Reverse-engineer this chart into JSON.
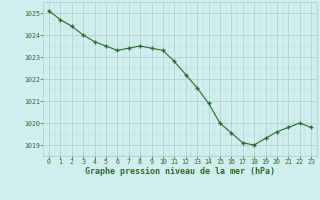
{
  "x": [
    0,
    1,
    2,
    3,
    4,
    5,
    6,
    7,
    8,
    9,
    10,
    11,
    12,
    13,
    14,
    15,
    16,
    17,
    18,
    19,
    20,
    21,
    22,
    23
  ],
  "y": [
    1025.1,
    1024.7,
    1024.4,
    1024.0,
    1023.7,
    1023.5,
    1023.3,
    1023.4,
    1023.5,
    1023.4,
    1023.3,
    1022.8,
    1022.2,
    1021.6,
    1020.9,
    1020.0,
    1019.55,
    1019.1,
    1019.0,
    1019.3,
    1019.6,
    1019.8,
    1020.0,
    1019.8
  ],
  "line_color": "#2d6a2d",
  "marker_color": "#2d6a2d",
  "bg_color": "#d0eeee",
  "grid_color_major": "#aacccc",
  "xlabel": "Graphe pression niveau de la mer (hPa)",
  "xlabel_color": "#2d6a2d",
  "tick_color": "#2d6a2d",
  "ylim": [
    1018.5,
    1025.5
  ],
  "xlim": [
    -0.5,
    23.5
  ],
  "yticks": [
    1019,
    1020,
    1021,
    1022,
    1023,
    1024,
    1025
  ],
  "xticks": [
    0,
    1,
    2,
    3,
    4,
    5,
    6,
    7,
    8,
    9,
    10,
    11,
    12,
    13,
    14,
    15,
    16,
    17,
    18,
    19,
    20,
    21,
    22,
    23
  ]
}
